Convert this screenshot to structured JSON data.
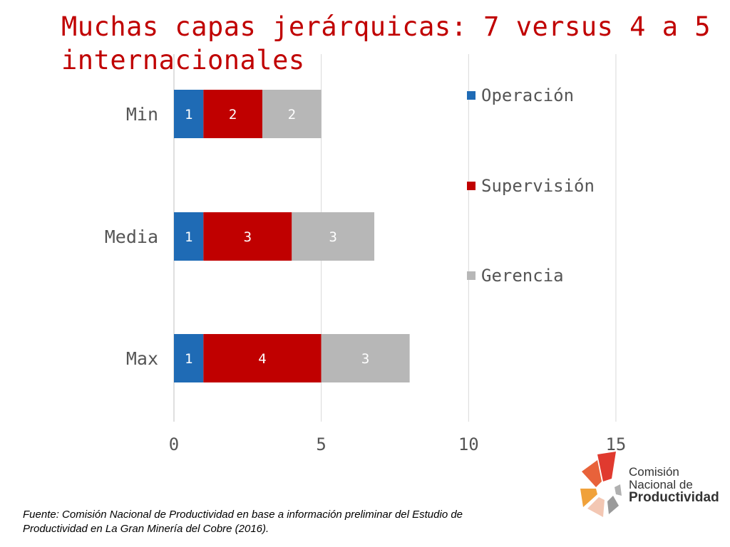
{
  "title": "Muchas capas jerárquicas: 7 versus 4 a 5 internacionales",
  "chart_data": {
    "type": "bar",
    "orientation": "horizontal",
    "stacked": true,
    "categories": [
      "Min",
      "Media",
      "Max"
    ],
    "series": [
      {
        "name": "Operación",
        "values": [
          1,
          1,
          1
        ],
        "labels": [
          "1",
          "1",
          "1"
        ],
        "color": "#1f6bb5"
      },
      {
        "name": "Supervisión",
        "values": [
          2,
          3,
          4
        ],
        "labels": [
          "2",
          "3",
          "4"
        ],
        "color": "#c00000"
      },
      {
        "name": "Gerencia",
        "values": [
          2,
          2.8,
          3
        ],
        "labels": [
          "2",
          "3",
          "3"
        ],
        "color": "#b7b7b7"
      }
    ],
    "xlim": [
      0,
      18
    ],
    "xticks": [
      0,
      5,
      10,
      15
    ],
    "xtick_labels": [
      "0",
      "5",
      "10",
      "15"
    ],
    "grid": true,
    "legend_position": "right"
  },
  "source": "Fuente: Comisión Nacional de Productividad en base a información preliminar del Estudio de Productividad en La Gran Minería del Cobre (2016).",
  "logo": {
    "line1": "Comisión",
    "line2": "Nacional de",
    "line3": "Productividad"
  }
}
